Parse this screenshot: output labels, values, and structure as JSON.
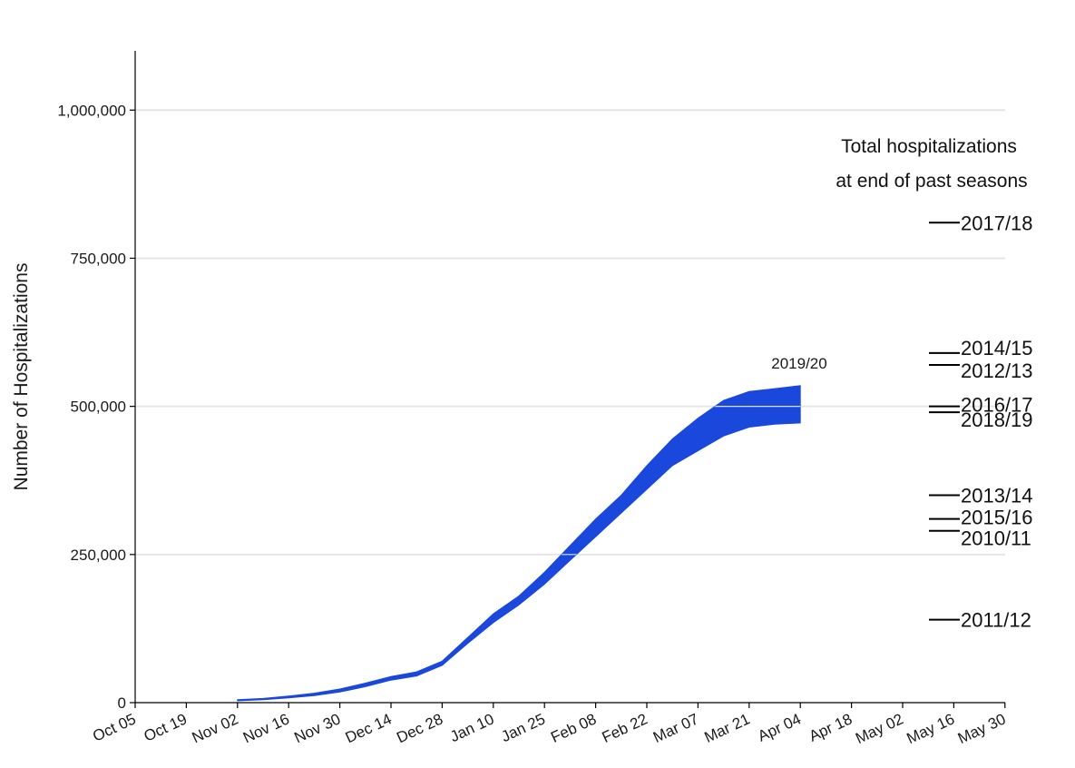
{
  "chart_data": {
    "type": "area",
    "title": "",
    "xlabel": "",
    "ylabel": "Number of Hospitalizations",
    "ylim": [
      0,
      1100000
    ],
    "grid": "horizontal",
    "colors": {
      "band": "#1a47dc",
      "grid": "#e6e6e6",
      "axis": "#000000",
      "reference": "#000000"
    },
    "x_ticks": [
      "Oct 05",
      "Oct 19",
      "Nov 02",
      "Nov 16",
      "Nov 30",
      "Dec 14",
      "Dec 28",
      "Jan 10",
      "Jan 25",
      "Feb 08",
      "Feb 22",
      "Mar 07",
      "Mar 21",
      "Apr 04",
      "Apr 18",
      "May 02",
      "May 16",
      "May 30"
    ],
    "y_ticks": [
      {
        "value": 0,
        "label": "0"
      },
      {
        "value": 250000,
        "label": "250,000"
      },
      {
        "value": 500000,
        "label": "500,000"
      },
      {
        "value": 750000,
        "label": "750,000"
      },
      {
        "value": 1000000,
        "label": "1,000,000"
      }
    ],
    "series": [
      {
        "name": "2019/20",
        "x": [
          "Nov 02",
          "Nov 09",
          "Nov 16",
          "Nov 23",
          "Nov 30",
          "Dec 07",
          "Dec 14",
          "Dec 21",
          "Dec 28",
          "Jan 04",
          "Jan 11",
          "Jan 18",
          "Jan 25",
          "Feb 01",
          "Feb 08",
          "Feb 15",
          "Feb 22",
          "Feb 29",
          "Mar 07",
          "Mar 14",
          "Mar 21",
          "Mar 28",
          "Apr 04"
        ],
        "lower": [
          3000,
          5000,
          8000,
          12000,
          18000,
          27000,
          38000,
          45000,
          63000,
          100000,
          135000,
          165000,
          200000,
          240000,
          280000,
          320000,
          360000,
          400000,
          425000,
          450000,
          465000,
          470000,
          472000
        ],
        "upper": [
          5000,
          7000,
          11000,
          16000,
          23000,
          33000,
          44000,
          52000,
          70000,
          110000,
          150000,
          180000,
          220000,
          265000,
          310000,
          350000,
          400000,
          445000,
          480000,
          510000,
          525000,
          530000,
          535000
        ]
      }
    ],
    "band_label": "2019/20",
    "legend_title": [
      "Total hospitalizations",
      "at end of past seasons"
    ],
    "past_seasons": [
      {
        "season": "2017/18",
        "value": 810000
      },
      {
        "season": "2014/15",
        "value": 590000
      },
      {
        "season": "2012/13",
        "value": 570000
      },
      {
        "season": "2016/17",
        "value": 500000
      },
      {
        "season": "2018/19",
        "value": 490000
      },
      {
        "season": "2013/14",
        "value": 350000
      },
      {
        "season": "2015/16",
        "value": 310000
      },
      {
        "season": "2010/11",
        "value": 290000
      },
      {
        "season": "2011/12",
        "value": 140000
      }
    ]
  }
}
